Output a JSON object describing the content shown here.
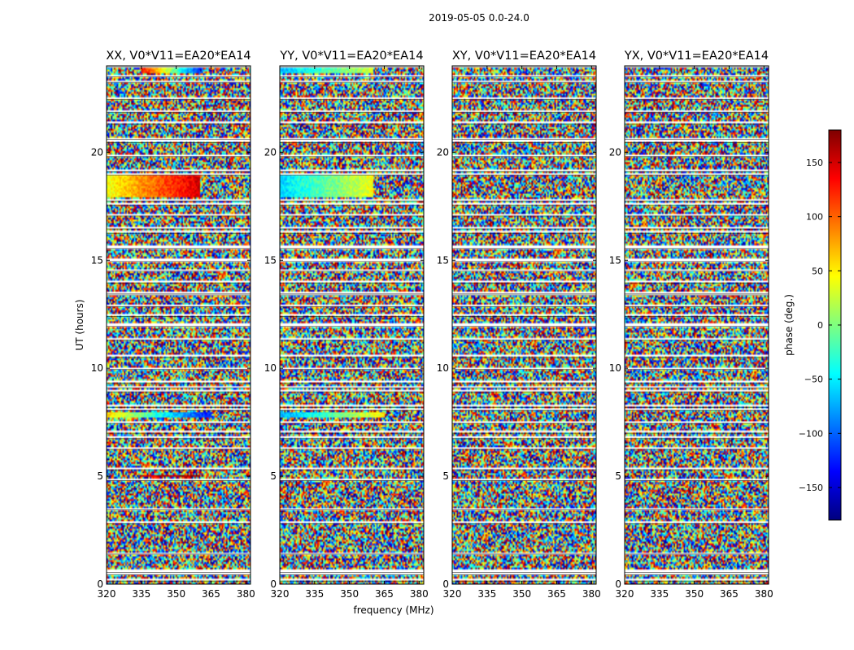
{
  "figure": {
    "suptitle": "2019-05-05 0.0-24.0",
    "xlabel": "frequency (MHz)",
    "ylabel": "UT (hours)"
  },
  "colorbar": {
    "label": "phase (deg.)",
    "ticks": [
      150,
      100,
      50,
      0,
      -50,
      -100,
      -150
    ],
    "tick_labels": [
      "150",
      "100",
      "50",
      "0",
      "−50",
      "−100",
      "−150"
    ],
    "range": [
      -180,
      180
    ],
    "colormap": "jet",
    "colors": [
      "#00007f",
      "#0000ff",
      "#007fff",
      "#00ffff",
      "#7fff7f",
      "#ffff00",
      "#ff7f00",
      "#ff0000",
      "#7f0000"
    ]
  },
  "chart_data": [
    {
      "type": "heatmap",
      "title": "XX, V0*V11=EA20*EA14",
      "x_range": [
        320,
        382
      ],
      "y_range": [
        0,
        24
      ],
      "x_ticks": [
        320,
        335,
        350,
        365,
        380
      ],
      "y_ticks": [
        0,
        5,
        10,
        15,
        20
      ],
      "coherent_bands": [
        {
          "t0": 17.9,
          "t1": 18.9,
          "f0": 320,
          "f1": 360,
          "phase0": 40,
          "phase1": 150
        },
        {
          "t0": 7.75,
          "t1": 7.95,
          "f0": 320,
          "f1": 365,
          "phase0": 60,
          "phase1": -130
        },
        {
          "t0": 4.95,
          "t1": 5.1,
          "f0": 335,
          "f1": 360,
          "phase0": 150,
          "phase1": 170
        },
        {
          "t0": 23.7,
          "t1": 24.0,
          "f0": 335,
          "f1": 360,
          "phase0": 140,
          "phase1": -120
        }
      ]
    },
    {
      "type": "heatmap",
      "title": "YY, V0*V11=EA20*EA14",
      "x_range": [
        320,
        382
      ],
      "y_range": [
        0,
        24
      ],
      "x_ticks": [
        320,
        335,
        350,
        365,
        380
      ],
      "y_ticks": [
        0,
        5,
        10,
        15,
        20
      ],
      "coherent_bands": [
        {
          "t0": 17.9,
          "t1": 18.9,
          "f0": 320,
          "f1": 360,
          "phase0": -60,
          "phase1": 40
        },
        {
          "t0": 7.75,
          "t1": 7.95,
          "f0": 320,
          "f1": 365,
          "phase0": -80,
          "phase1": 50
        },
        {
          "t0": 23.7,
          "t1": 24.0,
          "f0": 320,
          "f1": 360,
          "phase0": -70,
          "phase1": 30
        }
      ]
    },
    {
      "type": "heatmap",
      "title": "XY, V0*V11=EA20*EA14",
      "x_range": [
        320,
        382
      ],
      "y_range": [
        0,
        24
      ],
      "x_ticks": [
        320,
        335,
        350,
        365,
        380
      ],
      "y_ticks": [
        0,
        5,
        10,
        15,
        20
      ],
      "coherent_bands": []
    },
    {
      "type": "heatmap",
      "title": "YX, V0*V11=EA20*EA14",
      "x_range": [
        320,
        382
      ],
      "y_range": [
        0,
        24
      ],
      "x_ticks": [
        320,
        335,
        350,
        365,
        380
      ],
      "y_ticks": [
        0,
        5,
        10,
        15,
        20
      ],
      "coherent_bands": []
    }
  ],
  "flagged_times_hours": [
    0.2,
    0.5,
    0.6,
    1.45,
    2.85,
    3.5,
    4.85,
    5.35,
    6.3,
    6.8,
    7.05,
    7.5,
    8.1,
    8.25,
    8.95,
    9.15,
    9.35,
    10.0,
    10.55,
    11.35,
    12.0,
    12.45,
    12.9,
    13.45,
    13.5,
    14.0,
    14.55,
    15.0,
    15.6,
    16.3,
    16.5,
    17.1,
    17.6,
    17.8,
    19.0,
    19.15,
    19.85,
    20.5,
    20.65,
    21.35,
    21.9,
    22.5,
    23.3,
    23.55,
    24.0
  ]
}
